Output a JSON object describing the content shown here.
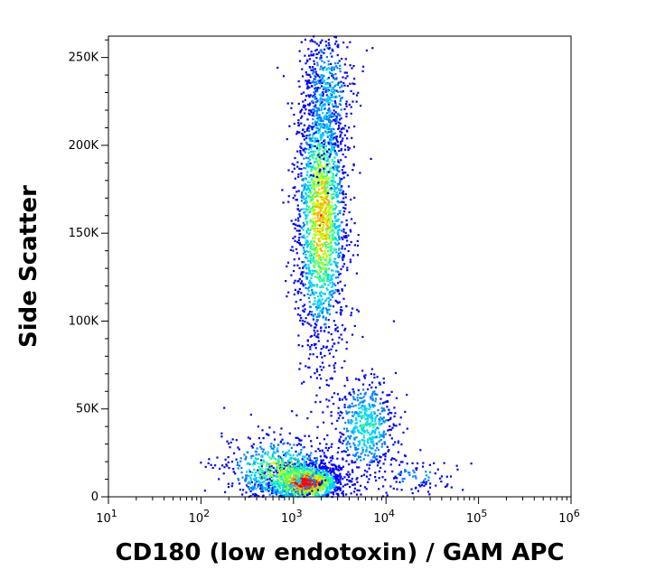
{
  "chart_data": {
    "type": "scatter",
    "subtype": "flow-cytometry-density-plot",
    "xlabel": "CD180 (low endotoxin) / GAM APC",
    "ylabel": "Side Scatter",
    "x_scale": "log",
    "xlim": [
      10,
      1000000
    ],
    "ylim": [
      0,
      262144
    ],
    "x_ticks": [
      {
        "value": 10,
        "base": "10",
        "exp": "1"
      },
      {
        "value": 100,
        "base": "10",
        "exp": "2"
      },
      {
        "value": 1000,
        "base": "10",
        "exp": "3"
      },
      {
        "value": 10000,
        "base": "10",
        "exp": "4"
      },
      {
        "value": 100000,
        "base": "10",
        "exp": "5"
      },
      {
        "value": 1000000,
        "base": "10",
        "exp": "6"
      }
    ],
    "y_ticks": [
      {
        "value": 0,
        "label": "0"
      },
      {
        "value": 50000,
        "label": "50K"
      },
      {
        "value": 100000,
        "label": "100K"
      },
      {
        "value": 150000,
        "label": "150K"
      },
      {
        "value": 200000,
        "label": "200K"
      },
      {
        "value": 250000,
        "label": "250K"
      }
    ],
    "grid": false,
    "legend": "none",
    "colormap": [
      "#0000ff",
      "#0080ff",
      "#00d0ff",
      "#30ff90",
      "#c0ff00",
      "#ffb000",
      "#ff0000"
    ],
    "populations": [
      {
        "x_center": 1300,
        "x_log_sd": 0.22,
        "y_center": 8000,
        "y_sd": 6000,
        "weight": 0.3,
        "peak": 1.0
      },
      {
        "x_center": 700,
        "x_log_sd": 0.3,
        "y_center": 15000,
        "y_sd": 10000,
        "weight": 0.12,
        "peak": 0.6
      },
      {
        "x_center": 2000,
        "x_log_sd": 0.14,
        "y_center": 160000,
        "y_sd": 40000,
        "weight": 0.38,
        "peak": 0.75
      },
      {
        "x_center": 2300,
        "x_log_sd": 0.13,
        "y_center": 230000,
        "y_sd": 20000,
        "weight": 0.08,
        "peak": 0.35
      },
      {
        "x_center": 6000,
        "x_log_sd": 0.16,
        "y_center": 40000,
        "y_sd": 14000,
        "weight": 0.1,
        "peak": 0.45
      },
      {
        "x_center": 20000,
        "x_log_sd": 0.25,
        "y_center": 12000,
        "y_sd": 5000,
        "weight": 0.02,
        "peak": 0.2
      }
    ]
  }
}
